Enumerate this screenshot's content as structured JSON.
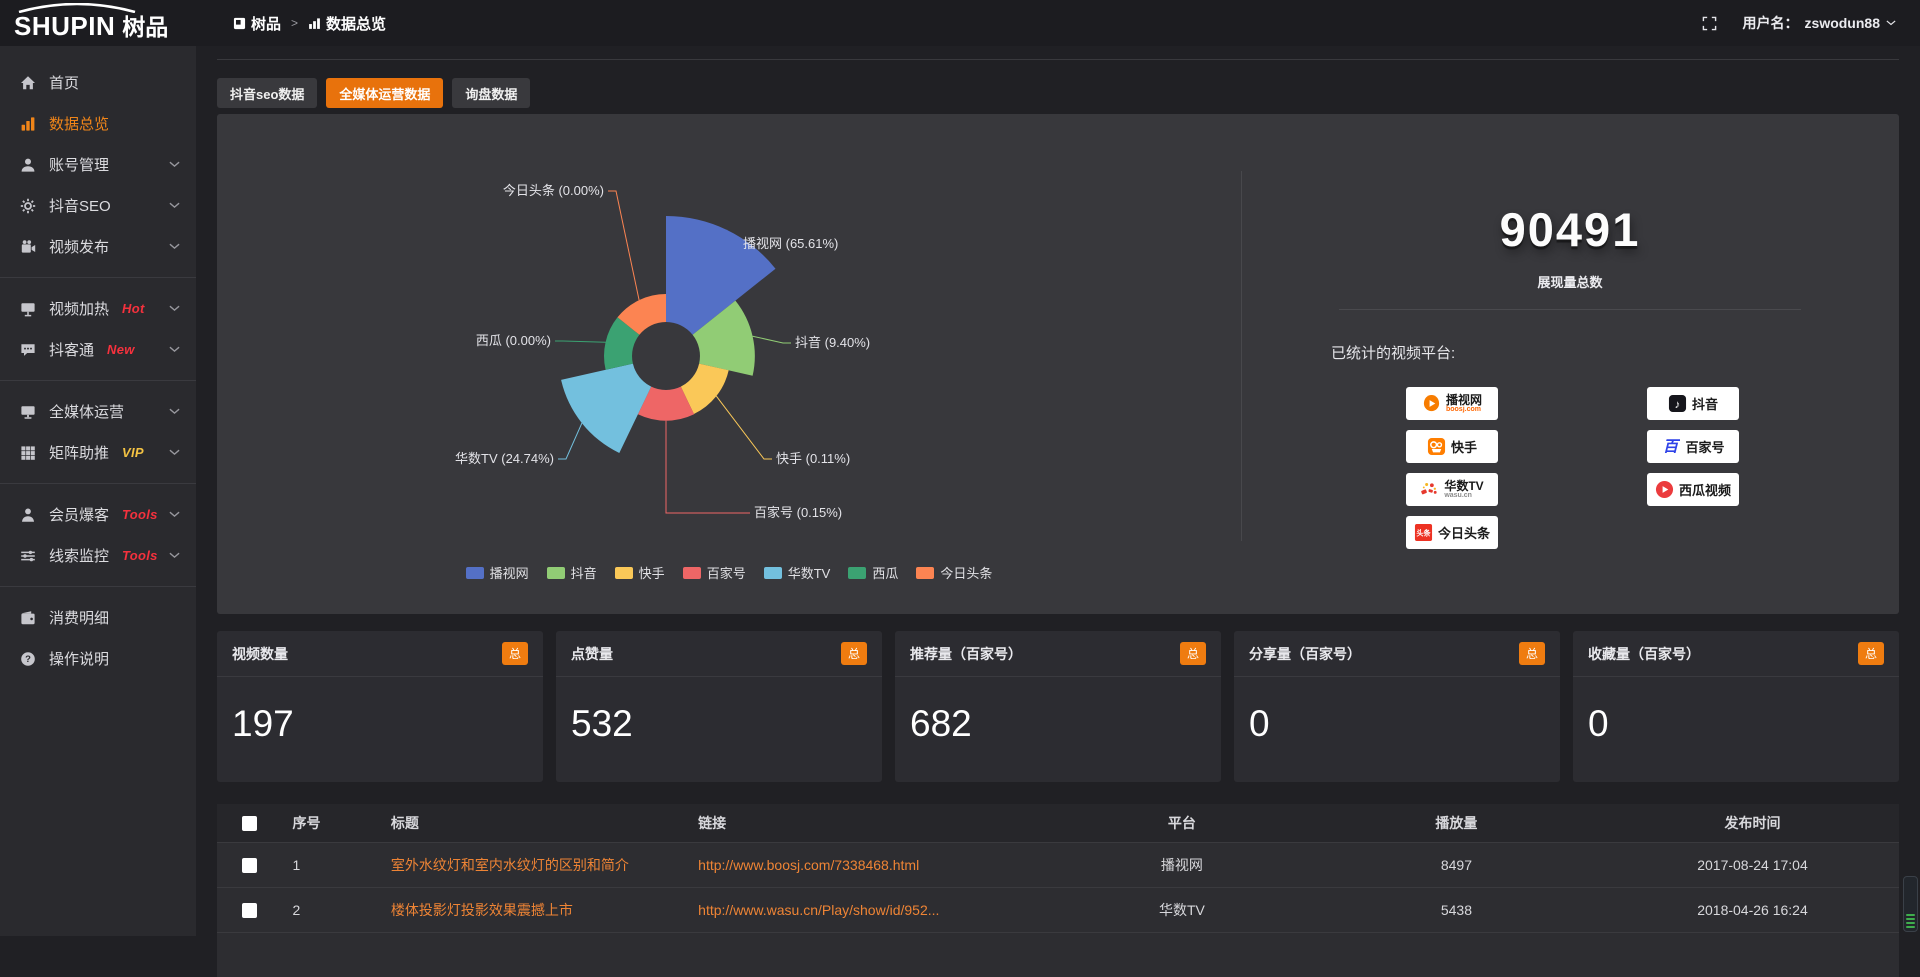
{
  "brand": {
    "logo_text": "SHUPIN",
    "logo_cn": "树品"
  },
  "topbar": {
    "breadcrumb_root": "树品",
    "breadcrumb_sep": ">",
    "breadcrumb_current": "数据总览",
    "username_label": "用户名：",
    "username": "zswodun88"
  },
  "sidebar": {
    "items": [
      {
        "key": "home",
        "icon": "home",
        "label": "首页"
      },
      {
        "key": "data-overview",
        "icon": "chart",
        "label": "数据总览",
        "active": true
      },
      {
        "key": "account-manage",
        "icon": "user",
        "label": "账号管理",
        "children": true
      },
      {
        "key": "douyin-seo",
        "icon": "gear",
        "label": "抖音SEO",
        "children": true
      },
      {
        "key": "video-publish",
        "icon": "video",
        "label": "视频发布",
        "children": true
      },
      {
        "divider": true
      },
      {
        "key": "video-heat",
        "icon": "heat",
        "label": "视频加热",
        "tag": "Hot",
        "tag_color": "#f5313d",
        "children": true
      },
      {
        "key": "douketong",
        "icon": "chat",
        "label": "抖客通",
        "tag": "New",
        "tag_color": "#f5313d",
        "children": true
      },
      {
        "divider": true
      },
      {
        "key": "media-operation",
        "icon": "monitor",
        "label": "全媒体运营",
        "children": true
      },
      {
        "key": "matrix-boost",
        "icon": "grid",
        "label": "矩阵助推",
        "tag": "VIP",
        "tag_color": "#f3c243",
        "children": true
      },
      {
        "divider": true
      },
      {
        "key": "member-baoke",
        "icon": "member",
        "label": "会员爆客",
        "tag": "Tools",
        "tag_color": "#f5313d",
        "children": true
      },
      {
        "key": "clue-monitor",
        "icon": "sliders",
        "label": "线索监控",
        "tag": "Tools",
        "tag_color": "#f5313d",
        "children": true
      },
      {
        "divider": true
      },
      {
        "key": "consumption",
        "icon": "wallet",
        "label": "消费明细"
      },
      {
        "key": "help",
        "icon": "help",
        "label": "操作说明"
      }
    ]
  },
  "tabs": [
    {
      "key": "douyin-seo-data",
      "label": "抖音seo数据",
      "active": false
    },
    {
      "key": "media-operation-data",
      "label": "全媒体运营数据",
      "active": true
    },
    {
      "key": "inquiry-data",
      "label": "询盘数据",
      "active": false
    }
  ],
  "chart_data": {
    "type": "pie",
    "subtype": "nightingale-rose",
    "title": "",
    "unit": "%",
    "series": [
      {
        "name": "播视网",
        "percent": 65.61,
        "color": "#5470c6"
      },
      {
        "name": "抖音",
        "percent": 9.4,
        "color": "#91cc75"
      },
      {
        "name": "快手",
        "percent": 0.11,
        "color": "#fac858"
      },
      {
        "name": "百家号",
        "percent": 0.15,
        "color": "#ee6666"
      },
      {
        "name": "华数TV",
        "percent": 24.74,
        "color": "#73c0de"
      },
      {
        "name": "西瓜",
        "percent": 0.0,
        "color": "#3ba272"
      },
      {
        "name": "今日头条",
        "percent": 0.0,
        "color": "#fc8452"
      }
    ],
    "legend": [
      "播视网",
      "抖音",
      "快手",
      "百家号",
      "华数TV",
      "西瓜",
      "今日头条"
    ],
    "legend_position": "bottom"
  },
  "summary": {
    "total": "90491",
    "total_label": "展现量总数",
    "platforms_label": "已统计的视频平台:",
    "platforms": [
      {
        "key": "boosj",
        "name": "播视网",
        "sub": "boosj.com",
        "icon": "boosj"
      },
      {
        "key": "douyin",
        "name": "抖音",
        "icon": "douyin"
      },
      {
        "key": "kuaishou",
        "name": "快手",
        "icon": "kuaishou"
      },
      {
        "key": "baijiahao",
        "name": "百家号",
        "icon": "baijiahao"
      },
      {
        "key": "wasu",
        "name": "华数TV",
        "sub": "wasu.cn",
        "icon": "wasu"
      },
      {
        "key": "xigua",
        "name": "西瓜视频",
        "icon": "xigua"
      },
      {
        "key": "toutiao",
        "name": "今日头条",
        "icon": "toutiao"
      }
    ]
  },
  "stat_cards": [
    {
      "key": "video-count",
      "label": "视频数量",
      "badge": "总",
      "value": "197"
    },
    {
      "key": "like-count",
      "label": "点赞量",
      "badge": "总",
      "value": "532"
    },
    {
      "key": "recommend-count",
      "label": "推荐量（百家号）",
      "badge": "总",
      "value": "682"
    },
    {
      "key": "share-count",
      "label": "分享量（百家号）",
      "badge": "总",
      "value": "0"
    },
    {
      "key": "favorite-count",
      "label": "收藏量（百家号）",
      "badge": "总",
      "value": "0"
    }
  ],
  "table": {
    "columns": [
      "序号",
      "标题",
      "链接",
      "平台",
      "播放量",
      "发布时间"
    ],
    "rows": [
      {
        "no": "1",
        "title": "室外水纹灯和室内水纹灯的区别和简介",
        "link": "http://www.boosj.com/7338468.html",
        "platform": "播视网",
        "plays": "8497",
        "publish_time": "2017-08-24 17:04"
      },
      {
        "no": "2",
        "title": "楼体投影灯投影效果震撼上市",
        "link": "http://www.wasu.cn/Play/show/id/952...",
        "platform": "华数TV",
        "plays": "5438",
        "publish_time": "2018-04-26 16:24"
      }
    ]
  },
  "colors": {
    "accent_orange": "#e8720c",
    "link_orange": "#ee8435",
    "sidebar_active": "#f08519",
    "panel_bg": "#38383c",
    "card_bg": "#2c2c31",
    "page_bg": "#202024"
  }
}
